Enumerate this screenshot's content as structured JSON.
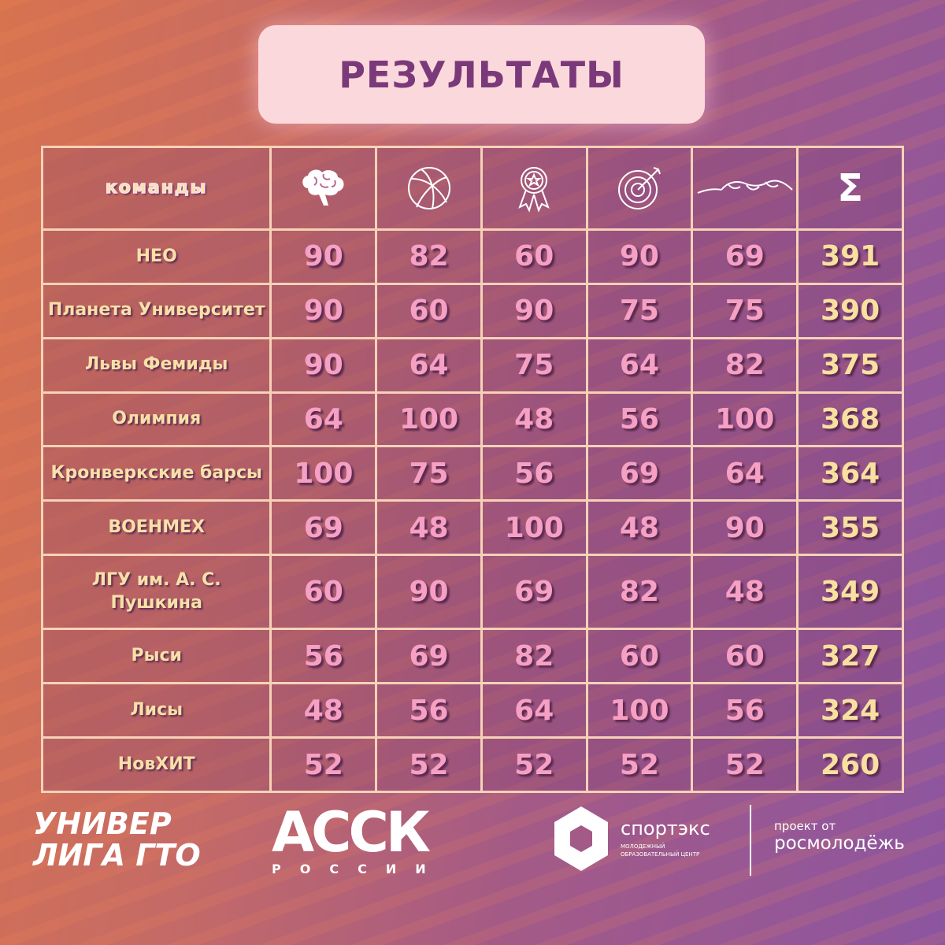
{
  "title": "РЕЗУЛЬТАТЫ",
  "table": {
    "team_header": "команды",
    "column_icons": [
      "brain-icon",
      "basketball-icon",
      "medal-icon",
      "target-icon",
      "rope-icon",
      "sigma-icon"
    ],
    "sum_symbol": "Σ",
    "rows": [
      {
        "team": "НЕО",
        "scores": [
          90,
          82,
          60,
          90,
          69
        ],
        "total": 391
      },
      {
        "team": "Планета Университет",
        "scores": [
          90,
          60,
          90,
          75,
          75
        ],
        "total": 390
      },
      {
        "team": "Львы Фемиды",
        "scores": [
          90,
          64,
          75,
          64,
          82
        ],
        "total": 375
      },
      {
        "team": "Олимпия",
        "scores": [
          64,
          100,
          48,
          56,
          100
        ],
        "total": 368
      },
      {
        "team": "Кронверкские барсы",
        "scores": [
          100,
          75,
          56,
          69,
          64
        ],
        "total": 364
      },
      {
        "team": "ВОЕНМЕХ",
        "scores": [
          69,
          48,
          100,
          48,
          90
        ],
        "total": 355
      },
      {
        "team": "ЛГУ им. А. С. Пушкина",
        "scores": [
          60,
          90,
          69,
          82,
          48
        ],
        "total": 349
      },
      {
        "team": "Рыси",
        "scores": [
          56,
          69,
          82,
          60,
          60
        ],
        "total": 327
      },
      {
        "team": "Лисы",
        "scores": [
          48,
          56,
          64,
          100,
          56
        ],
        "total": 324
      },
      {
        "team": "НовХИТ",
        "scores": [
          52,
          52,
          52,
          52,
          52
        ],
        "total": 260
      }
    ]
  },
  "footer": {
    "logo1_line1": "УНИВЕР",
    "logo1_line2": "ЛИГА ГТО",
    "logo2": "АССК",
    "logo2_sub": "РОССИИ",
    "logo3": "спортэкс",
    "logo3_sub": "МОЛОДЕЖНЫЙ ОБРАЗОВАТЕЛЬНЫЙ ЦЕНТР",
    "project_label": "проект от",
    "project_org": "росмолодёжь"
  }
}
